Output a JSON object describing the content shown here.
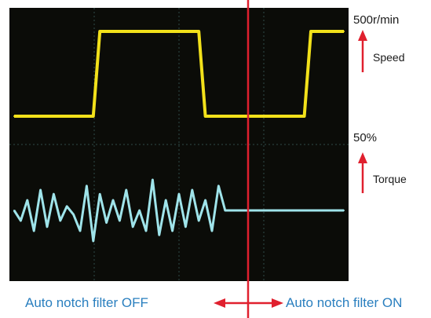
{
  "chart_data": {
    "type": "line",
    "colors": {
      "screen": "#0b0c08",
      "grid": "#2f4a48",
      "speed_trace": "#f2e11a",
      "torque_trace": "#9fe4ea",
      "divider": "#e0202e",
      "arrow": "#e0202e",
      "caption": "#2a7fbf"
    },
    "x": [
      0,
      2,
      4,
      6,
      8,
      10,
      12,
      14,
      16,
      18,
      20,
      22,
      24,
      26,
      28,
      30,
      32,
      34,
      36,
      38,
      40,
      42,
      44,
      46,
      48,
      50,
      52,
      54,
      56,
      58,
      60,
      62,
      64,
      66,
      68,
      70,
      72,
      74,
      76,
      78,
      80,
      82,
      84,
      86,
      88,
      90,
      92,
      94,
      96,
      98,
      100
    ],
    "series": [
      {
        "name": "Speed",
        "values": [
          0,
          0,
          0,
          0,
          0,
          0,
          0,
          0,
          0,
          0,
          0,
          0,
          0,
          500,
          500,
          500,
          500,
          500,
          500,
          500,
          500,
          500,
          500,
          500,
          500,
          500,
          500,
          500,
          500,
          0,
          0,
          0,
          0,
          0,
          0,
          0,
          0,
          0,
          0,
          0,
          0,
          0,
          0,
          0,
          0,
          500,
          500,
          500,
          500,
          500,
          500
        ],
        "scale_label": "500r/min",
        "label": "Speed"
      },
      {
        "name": "Torque",
        "values": [
          50,
          45,
          55,
          40,
          60,
          42,
          58,
          45,
          52,
          48,
          40,
          62,
          35,
          58,
          44,
          55,
          45,
          60,
          42,
          50,
          40,
          65,
          38,
          55,
          40,
          58,
          42,
          60,
          45,
          55,
          40,
          62,
          50,
          50,
          50,
          50,
          50,
          50,
          50,
          50,
          50,
          50,
          50,
          50,
          50,
          50,
          50,
          50,
          50,
          50,
          50
        ],
        "scale_label": "50%",
        "label": "Torque"
      }
    ],
    "regions": [
      {
        "label": "Auto notch filter OFF"
      },
      {
        "label": "Auto notch filter ON"
      }
    ]
  }
}
